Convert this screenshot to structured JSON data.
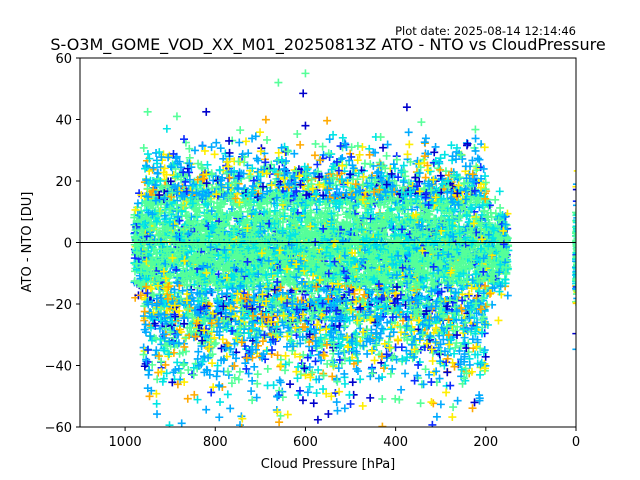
{
  "chart_data": {
    "type": "scatter",
    "title": "S-O3M_GOME_VOD_XX_M01_20250813Z ATO - NTO vs CloudPressure",
    "plot_date": "Plot date: 2025-08-14 12:14:46",
    "xlabel": "Cloud Pressure [hPa]",
    "ylabel": "ATO - NTO [DU]",
    "xlim": [
      1100,
      0
    ],
    "ylim": [
      -60,
      60
    ],
    "x_ticks": [
      1000,
      800,
      600,
      400,
      200,
      0
    ],
    "x_tick_labels": [
      "1000",
      "800",
      "600",
      "400",
      "200",
      "0"
    ],
    "y_ticks": [
      -60,
      -40,
      -20,
      0,
      20,
      40,
      60
    ],
    "y_tick_labels": [
      "−60",
      "−40",
      "−20",
      "0",
      "20",
      "40",
      "60"
    ],
    "reference_line_y": 0,
    "marker": "plus",
    "colormap": "jet",
    "colors": {
      "dark_blue": "#0000cc",
      "blue": "#0a2bff",
      "light_blue": "#00aaff",
      "cyan": "#00e5e5",
      "green": "#55ff99",
      "yellow": "#ffee00",
      "orange": "#ffaa00"
    },
    "point_cloud": {
      "x_range": [
        150,
        980
      ],
      "y_core_range": [
        -25,
        20
      ],
      "y_extent_range": [
        -60,
        55
      ],
      "right_edge_cluster_x": 0
    },
    "outliers": [
      {
        "x": 600,
        "y": 55
      },
      {
        "x": 605,
        "y": 48.5
      },
      {
        "x": 660,
        "y": 52
      },
      {
        "x": 375,
        "y": 44
      },
      {
        "x": 950,
        "y": 42.5
      },
      {
        "x": 820,
        "y": 42.5
      },
      {
        "x": 885,
        "y": 41
      },
      {
        "x": 225,
        "y": -52
      },
      {
        "x": 340,
        "y": -30
      },
      {
        "x": 600,
        "y": 38
      }
    ]
  }
}
